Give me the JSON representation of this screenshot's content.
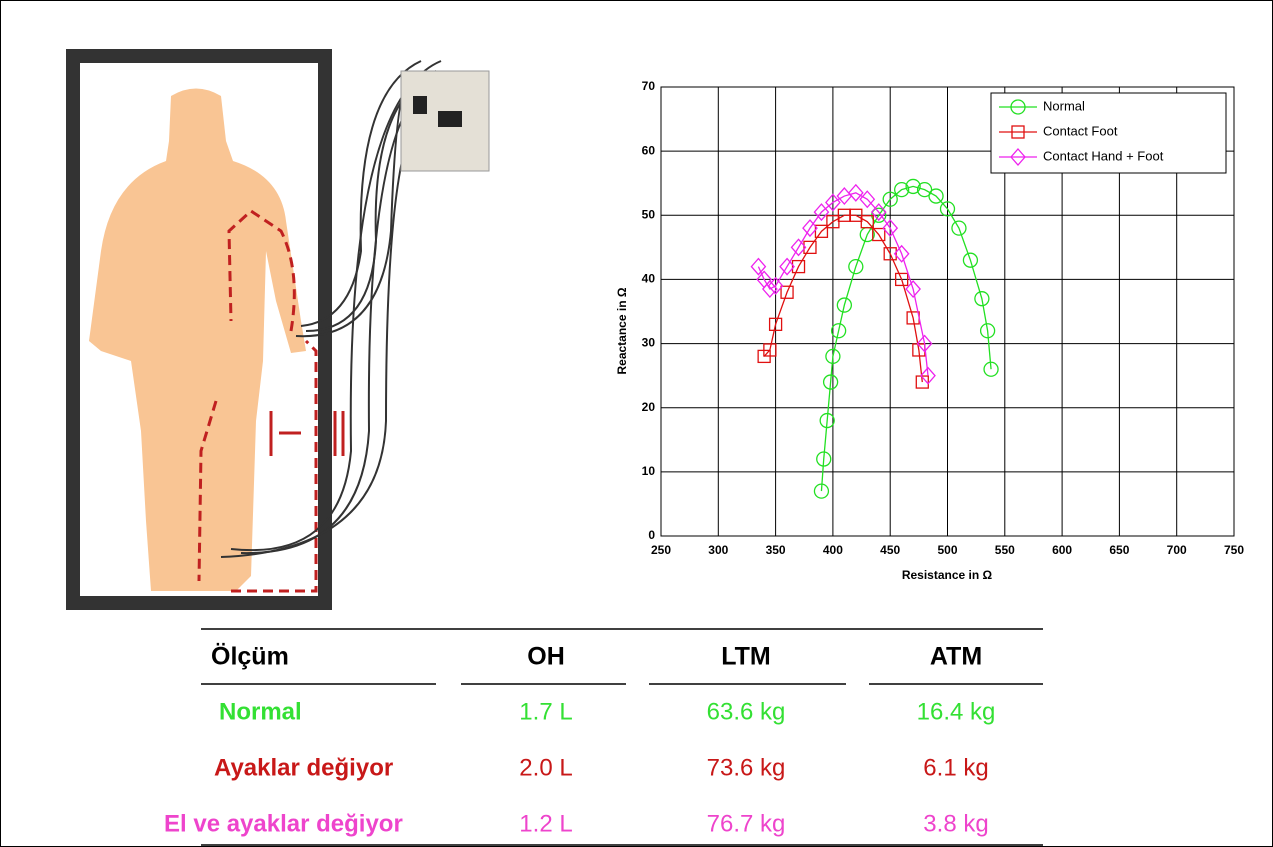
{
  "chart_data": {
    "type": "line",
    "x_label": "Resistance in Ω",
    "y_label": "Reactance in Ω",
    "xlim": [
      250,
      750
    ],
    "xticks": [
      250,
      300,
      350,
      400,
      450,
      500,
      550,
      600,
      650,
      700,
      750
    ],
    "ylim": [
      0,
      70
    ],
    "yticks": [
      0,
      10,
      20,
      30,
      40,
      50,
      60,
      70
    ],
    "grid": true,
    "legend": "upper right",
    "series": [
      {
        "name": "Normal",
        "color": "#22e022",
        "marker": "circle",
        "x": [
          390,
          392,
          395,
          398,
          400,
          405,
          410,
          420,
          430,
          440,
          450,
          460,
          470,
          480,
          490,
          500,
          510,
          520,
          530,
          535,
          538
        ],
        "values": [
          7,
          12,
          18,
          24,
          28,
          32,
          36,
          42,
          47,
          50,
          52.5,
          54,
          54.5,
          54,
          53,
          51,
          48,
          43,
          37,
          32,
          26
        ]
      },
      {
        "name": "Contact Foot",
        "color": "#e01010",
        "marker": "square",
        "x": [
          340,
          345,
          350,
          360,
          370,
          380,
          390,
          400,
          410,
          420,
          430,
          440,
          450,
          460,
          470,
          475,
          478
        ],
        "values": [
          28,
          29,
          33,
          38,
          42,
          45,
          47.5,
          49,
          50,
          50,
          49,
          47,
          44,
          40,
          34,
          29,
          24
        ]
      },
      {
        "name": "Contact Hand + Foot",
        "color": "#ee22ee",
        "marker": "diamond",
        "x": [
          335,
          340,
          345,
          350,
          360,
          370,
          380,
          390,
          400,
          410,
          420,
          430,
          440,
          450,
          460,
          470,
          480,
          483
        ],
        "values": [
          42,
          40,
          38.5,
          39,
          42,
          45,
          48,
          50.5,
          52,
          53,
          53.5,
          52.5,
          50.5,
          48,
          44,
          38.5,
          30,
          25
        ]
      }
    ]
  },
  "table": {
    "header": [
      "Ölçüm",
      "OH",
      "LTM",
      "ATM"
    ],
    "rows": [
      {
        "label": "Normal",
        "color": "#33e033",
        "cells": [
          "1.7 L",
          "63.6 kg",
          "16.4 kg"
        ]
      },
      {
        "label": "Ayaklar değiyor",
        "color": "#c81818",
        "cells": [
          "2.0 L",
          "73.6 kg",
          "6.1 kg"
        ]
      },
      {
        "label": "El ve ayaklar değiyor",
        "color": "#ee44cc",
        "cells": [
          "1.2 L",
          "76.7 kg",
          "3.8 kg"
        ]
      }
    ]
  }
}
